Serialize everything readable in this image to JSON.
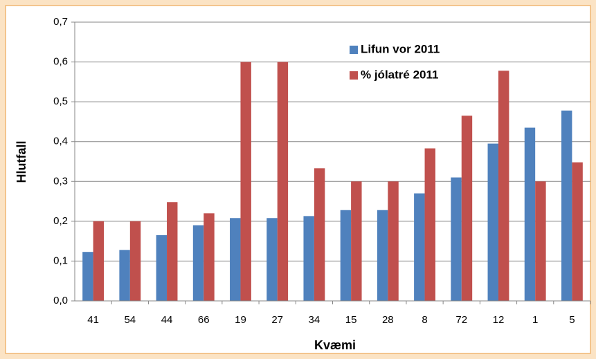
{
  "chart_data": {
    "type": "bar",
    "y_label": "Hlutfall",
    "x_label": "Kvæmi",
    "categories": [
      "41",
      "54",
      "44",
      "66",
      "19",
      "27",
      "34",
      "15",
      "28",
      "8",
      "72",
      "12",
      "1",
      "5"
    ],
    "series": [
      {
        "name": "Lifun vor 2011",
        "color": "#4f81bd",
        "values": [
          0.123,
          0.128,
          0.165,
          0.19,
          0.208,
          0.208,
          0.213,
          0.228,
          0.228,
          0.27,
          0.31,
          0.395,
          0.435,
          0.478
        ]
      },
      {
        "name": "% jólatré 2011",
        "color": "#c0504d",
        "values": [
          0.2,
          0.2,
          0.248,
          0.22,
          0.6,
          0.6,
          0.333,
          0.3,
          0.3,
          0.383,
          0.465,
          0.578,
          0.3,
          0.348
        ]
      }
    ],
    "ylim": [
      0,
      0.7
    ],
    "yticks": [
      {
        "value": 0,
        "label": "0,0"
      },
      {
        "value": 0.1,
        "label": "0,1"
      },
      {
        "value": 0.2,
        "label": "0,2"
      },
      {
        "value": 0.3,
        "label": "0,3"
      },
      {
        "value": 0.4,
        "label": "0,4"
      },
      {
        "value": 0.5,
        "label": "0,5"
      },
      {
        "value": 0.6,
        "label": "0,6"
      },
      {
        "value": 0.7,
        "label": "0,7"
      }
    ],
    "grid": true,
    "legend": "top-right"
  }
}
